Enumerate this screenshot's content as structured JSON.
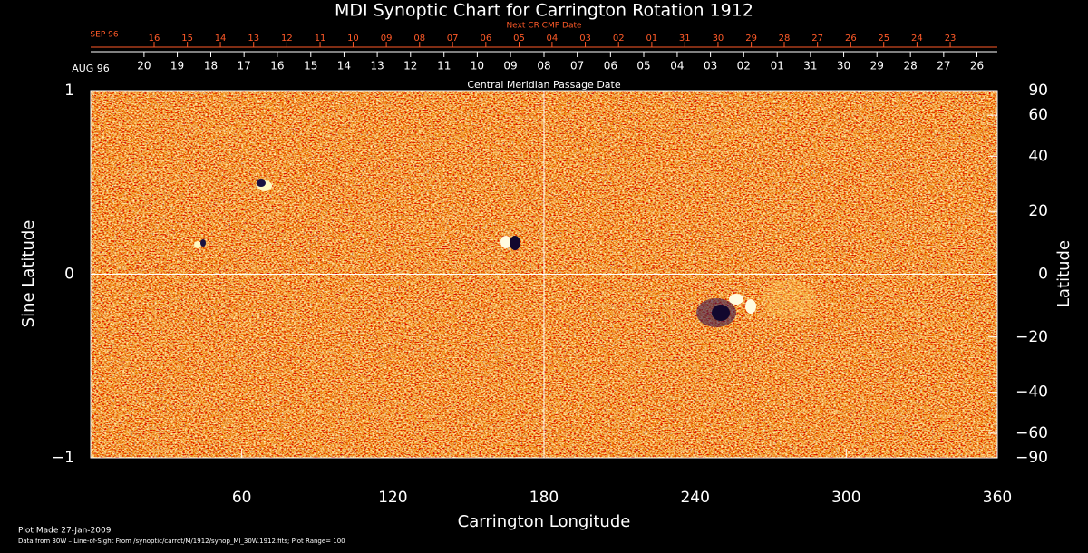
{
  "chart_data": {
    "type": "image",
    "title": "MDI Synoptic Chart for Carrington Rotation 1912",
    "xlabel": "Carrington Longitude",
    "ylabel": "Sine Latitude",
    "y2label": "Latitude",
    "xlim": [
      0,
      360
    ],
    "xticks": [
      60,
      120,
      180,
      240,
      300,
      360
    ],
    "ylim": [
      -1,
      1
    ],
    "yticks": [
      {
        "value": -1,
        "label": "−1"
      },
      0,
      1
    ],
    "y2lim": [
      -90,
      90
    ],
    "y2scale": "sine",
    "y2ticks": [
      90,
      60,
      40,
      20,
      0,
      {
        "value": -20,
        "label": "−20"
      },
      {
        "value": -40,
        "label": "−40"
      },
      {
        "value": -60,
        "label": "−60"
      },
      {
        "value": -90,
        "label": "−90"
      }
    ],
    "reference_lines": {
      "x": 180,
      "y": 0
    },
    "top_axes": [
      {
        "title": "Next CR CMP Date",
        "start_label": "SEP 96",
        "color": "#ff5a28",
        "ticks": [
          {
            "value": 25.2,
            "label": "16"
          },
          {
            "value": 38.4,
            "label": "15"
          },
          {
            "value": 51.5,
            "label": "14"
          },
          {
            "value": 64.7,
            "label": "13"
          },
          {
            "value": 77.9,
            "label": "12"
          },
          {
            "value": 91.1,
            "label": "11"
          },
          {
            "value": 104.2,
            "label": "10"
          },
          {
            "value": 117.4,
            "label": "09"
          },
          {
            "value": 130.6,
            "label": "08"
          },
          {
            "value": 143.7,
            "label": "07"
          },
          {
            "value": 156.9,
            "label": "06"
          },
          {
            "value": 170.1,
            "label": "05"
          },
          {
            "value": 183.2,
            "label": "04"
          },
          {
            "value": 196.4,
            "label": "03"
          },
          {
            "value": 209.6,
            "label": "02"
          },
          {
            "value": 222.8,
            "label": "01"
          },
          {
            "value": 235.9,
            "label": "31"
          },
          {
            "value": 249.1,
            "label": "30"
          },
          {
            "value": 262.3,
            "label": "29"
          },
          {
            "value": 275.4,
            "label": "28"
          },
          {
            "value": 288.6,
            "label": "27"
          },
          {
            "value": 301.8,
            "label": "26"
          },
          {
            "value": 314.9,
            "label": "25"
          },
          {
            "value": 328.1,
            "label": "24"
          },
          {
            "value": 341.3,
            "label": "23"
          }
        ]
      },
      {
        "title": "Central Meridian Passage Date",
        "start_label": "AUG 96",
        "color": "#ffffff",
        "ticks": [
          {
            "value": 21.2,
            "label": "20"
          },
          {
            "value": 34.4,
            "label": "19"
          },
          {
            "value": 47.7,
            "label": "18"
          },
          {
            "value": 60.9,
            "label": "17"
          },
          {
            "value": 74.1,
            "label": "16"
          },
          {
            "value": 87.4,
            "label": "15"
          },
          {
            "value": 100.6,
            "label": "14"
          },
          {
            "value": 113.8,
            "label": "13"
          },
          {
            "value": 127.0,
            "label": "12"
          },
          {
            "value": 140.3,
            "label": "11"
          },
          {
            "value": 153.5,
            "label": "10"
          },
          {
            "value": 166.7,
            "label": "09"
          },
          {
            "value": 180.0,
            "label": "08"
          },
          {
            "value": 193.2,
            "label": "07"
          },
          {
            "value": 206.4,
            "label": "06"
          },
          {
            "value": 219.6,
            "label": "05"
          },
          {
            "value": 232.9,
            "label": "04"
          },
          {
            "value": 246.1,
            "label": "03"
          },
          {
            "value": 259.3,
            "label": "02"
          },
          {
            "value": 272.6,
            "label": "01"
          },
          {
            "value": 285.8,
            "label": "31"
          },
          {
            "value": 299.0,
            "label": "30"
          },
          {
            "value": 312.2,
            "label": "29"
          },
          {
            "value": 325.5,
            "label": "28"
          },
          {
            "value": 338.7,
            "label": "27"
          },
          {
            "value": 351.9,
            "label": "26"
          }
        ]
      }
    ],
    "footer": [
      "Plot Made 27-Jan-2009",
      "Data from 30W – Line-of-Sight From /synoptic/carrot/M/1912/synop_Ml_30W.1912.fits; Plot Range=  100"
    ]
  }
}
